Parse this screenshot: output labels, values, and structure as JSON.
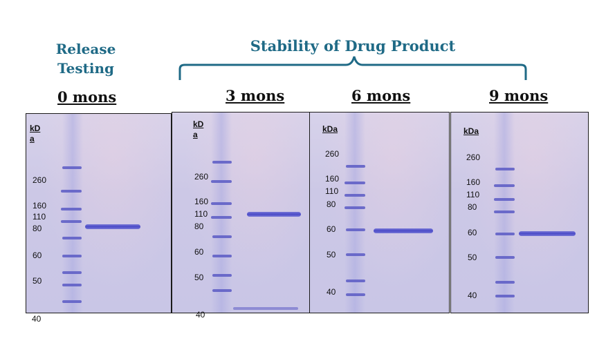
{
  "release_heading": [
    "Release",
    "Testing"
  ],
  "stability_heading": "Stability of Drug Product",
  "colors": {
    "heading": "#1f6a86",
    "band": "#4b4bc8",
    "gel_background": "#ccc8e6"
  },
  "gels": [
    {
      "timepoint": "0 mons",
      "unit_label": [
        "kD",
        "a"
      ],
      "markers": [
        "260",
        "160",
        "110",
        "80",
        "60",
        "50",
        "40"
      ]
    },
    {
      "timepoint": "3 mons",
      "unit_label": [
        "kD",
        "a"
      ],
      "markers": [
        "260",
        "160",
        "110",
        "80",
        "60",
        "50",
        "40"
      ]
    },
    {
      "timepoint": "6 mons",
      "unit_label": [
        "kDa"
      ],
      "markers": [
        "260",
        "160",
        "110",
        "80",
        "60",
        "50",
        "40"
      ]
    },
    {
      "timepoint": "9 mons",
      "unit_label": [
        "kDa"
      ],
      "markers": [
        "260",
        "160",
        "110",
        "80",
        "60",
        "50",
        "40"
      ]
    }
  ]
}
